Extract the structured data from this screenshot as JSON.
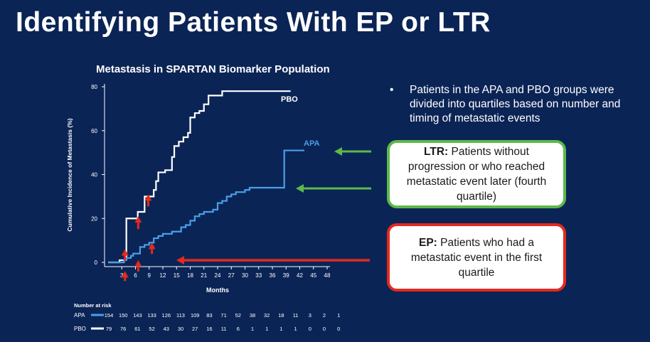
{
  "slide_title": "Identifying Patients With EP or LTR",
  "chart_title": "Metastasis in SPARTAN Biomarker Population",
  "bullet_text": "Patients in the APA and PBO groups were divided into quartiles based on number and timing of metastatic events",
  "ltr_box": {
    "label": "LTR:",
    "text": "Patients without progression or who reached metastatic event later (fourth quartile)"
  },
  "ep_box": {
    "label": "EP:",
    "text": "Patients who had a metastatic event in the first quartile"
  },
  "colors": {
    "background": "#0b2456",
    "pbo": "#ffffff",
    "apa": "#4a9fe8",
    "arrow_red": "#e32a1e",
    "arrow_green": "#5cb94a"
  },
  "chart_data": {
    "type": "line",
    "title": "Metastasis in SPARTAN Biomarker Population",
    "xlabel": "Months",
    "ylabel": "Cumulative Incidence of Metastasis (%)",
    "xlim": [
      0,
      48
    ],
    "ylim": [
      0,
      80
    ],
    "x_ticks": [
      3,
      6,
      9,
      12,
      15,
      18,
      21,
      24,
      27,
      30,
      33,
      36,
      39,
      42,
      45,
      48
    ],
    "y_ticks": [
      0,
      20,
      40,
      60,
      80
    ],
    "series": [
      {
        "name": "PBO",
        "color": "#ffffff",
        "steps": [
          [
            0,
            0
          ],
          [
            2,
            0
          ],
          [
            2.5,
            1
          ],
          [
            3.5,
            1
          ],
          [
            4,
            20
          ],
          [
            6,
            20
          ],
          [
            6.5,
            23
          ],
          [
            7.5,
            23
          ],
          [
            8,
            30
          ],
          [
            9.5,
            30
          ],
          [
            10,
            33
          ],
          [
            10.5,
            37
          ],
          [
            11,
            41
          ],
          [
            12.5,
            42
          ],
          [
            13,
            42
          ],
          [
            14,
            48
          ],
          [
            14.5,
            53
          ],
          [
            15.5,
            55
          ],
          [
            16.5,
            57
          ],
          [
            17.5,
            59
          ],
          [
            18,
            66
          ],
          [
            19,
            68
          ],
          [
            20,
            69
          ],
          [
            21,
            72
          ],
          [
            22,
            76
          ],
          [
            24,
            76
          ],
          [
            25,
            78
          ],
          [
            30,
            78
          ],
          [
            40,
            78
          ]
        ]
      },
      {
        "name": "APA",
        "color": "#4a9fe8",
        "steps": [
          [
            0,
            0
          ],
          [
            3,
            0
          ],
          [
            3.5,
            1
          ],
          [
            4,
            2
          ],
          [
            5,
            3
          ],
          [
            5.5,
            4
          ],
          [
            6.5,
            4
          ],
          [
            7,
            7
          ],
          [
            8,
            8
          ],
          [
            9,
            9
          ],
          [
            10,
            11
          ],
          [
            11,
            12
          ],
          [
            12,
            13
          ],
          [
            14,
            14
          ],
          [
            16,
            16
          ],
          [
            17,
            17
          ],
          [
            18,
            19
          ],
          [
            19,
            21
          ],
          [
            20,
            22
          ],
          [
            21,
            23
          ],
          [
            22,
            23
          ],
          [
            23,
            24
          ],
          [
            24,
            27
          ],
          [
            25,
            28
          ],
          [
            26,
            30
          ],
          [
            27,
            31
          ],
          [
            28,
            32
          ],
          [
            29,
            32
          ],
          [
            30,
            33
          ],
          [
            31,
            34
          ],
          [
            34,
            34
          ],
          [
            36,
            34
          ],
          [
            37,
            34
          ],
          [
            38,
            34
          ],
          [
            38.5,
            34
          ],
          [
            38.6,
            51
          ],
          [
            40,
            51
          ],
          [
            43,
            51
          ]
        ]
      }
    ],
    "annotations": {
      "pbo_label": "PBO",
      "apa_label": "APA"
    },
    "number_at_risk": {
      "title": "Number at risk",
      "rows": [
        {
          "name": "APA",
          "values": [
            154,
            150,
            143,
            133,
            126,
            113,
            109,
            83,
            71,
            52,
            38,
            32,
            18,
            11,
            3,
            2,
            1
          ]
        },
        {
          "name": "PBO",
          "values": [
            79,
            76,
            61,
            52,
            43,
            30,
            27,
            16,
            11,
            6,
            1,
            1,
            1,
            1,
            0,
            0,
            0
          ]
        }
      ]
    }
  }
}
